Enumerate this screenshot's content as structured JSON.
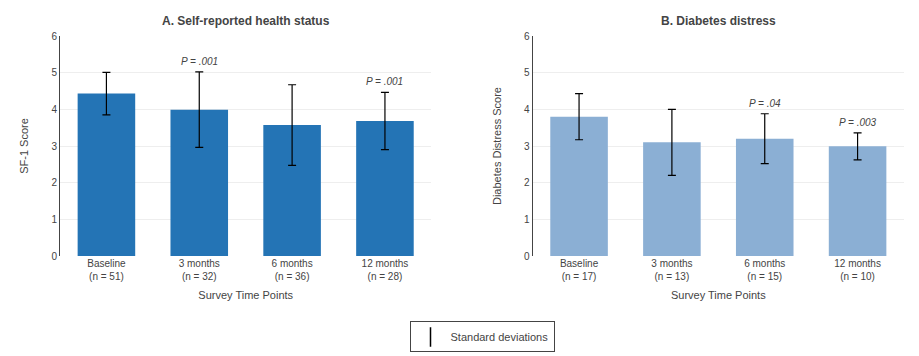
{
  "chart_data": [
    {
      "type": "bar",
      "title": "A. Self-reported health status",
      "xlabel": "Survey Time Points",
      "ylabel": "SF-1 Score",
      "categories": [
        "Baseline\n(n = 51)",
        "3 months\n(n = 32)",
        "6 months\n(n = 36)",
        "12 months\n(n = 28)"
      ],
      "values": [
        4.43,
        3.99,
        3.57,
        3.68
      ],
      "errors": [
        0.58,
        1.03,
        1.1,
        0.78
      ],
      "errors_label": "Standard deviations",
      "pvalues": [
        null,
        "P = .001",
        null,
        "P = .001"
      ],
      "color": "#2474B5",
      "ylim": [
        0,
        6
      ],
      "yticks": [
        0,
        1,
        2,
        3,
        4,
        5,
        6
      ],
      "grid": true,
      "legend": "bottom"
    },
    {
      "type": "bar",
      "title": "B. Diabetes distress",
      "xlabel": "Survey Time Points",
      "ylabel": "Diabetes Distress Score",
      "categories": [
        "Baseline\n(n = 17)",
        "3 months\n(n = 13)",
        "6 months\n(n = 15)",
        "12 months\n(n = 10)"
      ],
      "values": [
        3.8,
        3.1,
        3.2,
        2.99
      ],
      "errors": [
        0.63,
        0.9,
        0.68,
        0.37
      ],
      "pvalues": [
        null,
        null,
        "P = .04",
        "P = .003"
      ],
      "color": "#8BAFD4",
      "ylim": [
        0,
        6
      ],
      "yticks": [
        0,
        1,
        2,
        3,
        4,
        5,
        6
      ],
      "grid": true
    }
  ]
}
